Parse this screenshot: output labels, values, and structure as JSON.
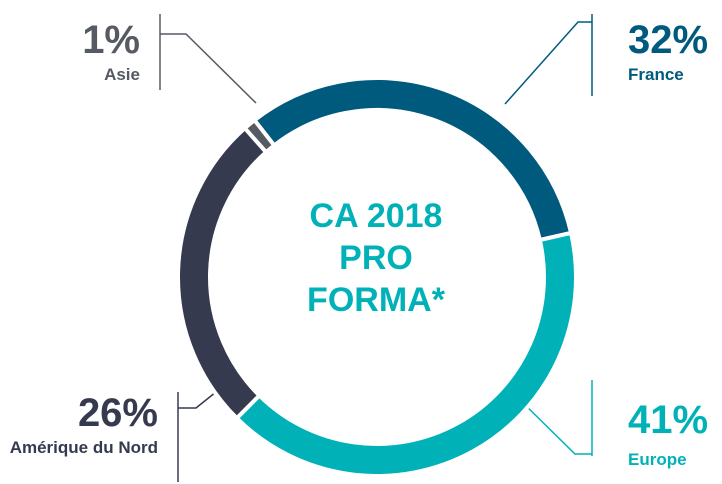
{
  "chart_data": {
    "type": "donut",
    "title": "CA 2018 PRO FORMA*",
    "categories": [
      "France",
      "Europe",
      "Amérique du Nord",
      "Asie"
    ],
    "values": [
      32,
      41,
      26,
      1
    ],
    "value_labels": [
      "32%",
      "41%",
      "26%",
      "1%"
    ],
    "colors": [
      "#005a7e",
      "#00b2b8",
      "#353a4f",
      "#555a63"
    ]
  }
}
